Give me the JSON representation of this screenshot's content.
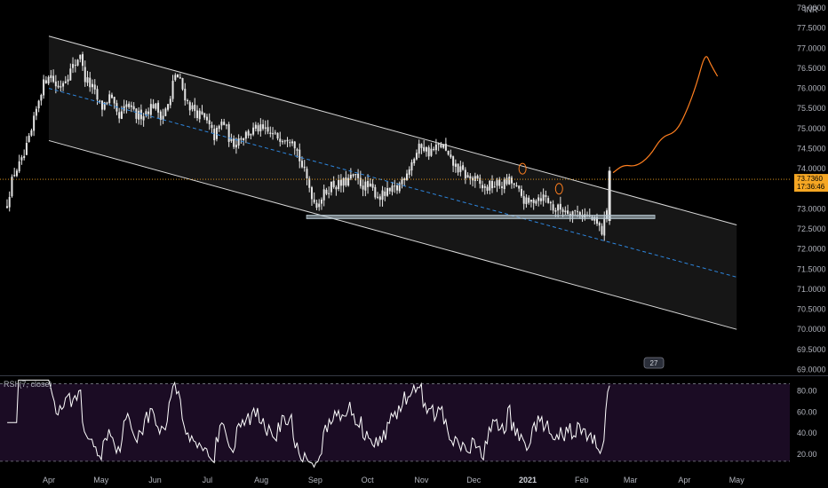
{
  "colors": {
    "background": "#000000",
    "candle": "#e6e6e6",
    "channel": "#d9d9d9",
    "channel_fill": "#1a1a1a",
    "midline": "#2e86de",
    "support": "#b9c9d3",
    "last_price": "#f5a623",
    "projection": "#ff7f1f",
    "rsi_line": "#ffffff",
    "rsi_fill": "#1b0c24"
  },
  "chart_data": [
    {
      "type": "candlestick",
      "currency": "INR",
      "ylim": [
        68.9,
        78.2
      ],
      "yticks": [
        "78.0000",
        "77.5000",
        "77.0000",
        "76.5000",
        "76.0000",
        "75.5000",
        "75.0000",
        "74.5000",
        "74.0000",
        "73.5000",
        "73.0000",
        "72.5000",
        "72.0000",
        "71.5000",
        "71.0000",
        "70.5000",
        "70.0000",
        "69.5000",
        "69.0000"
      ],
      "xticks": [
        {
          "label": "Apr",
          "day": 0
        },
        {
          "label": "May",
          "day": 30
        },
        {
          "label": "Jun",
          "day": 61
        },
        {
          "label": "Jul",
          "day": 91
        },
        {
          "label": "Aug",
          "day": 122
        },
        {
          "label": "Sep",
          "day": 153
        },
        {
          "label": "Oct",
          "day": 183
        },
        {
          "label": "Nov",
          "day": 214
        },
        {
          "label": "Dec",
          "day": 244
        },
        {
          "label": "2021",
          "day": 275,
          "bold": true
        },
        {
          "label": "Feb",
          "day": 306
        },
        {
          "label": "Mar",
          "day": 334
        },
        {
          "label": "Apr",
          "day": 365
        },
        {
          "label": "May",
          "day": 395
        }
      ],
      "last_price": 73.736,
      "last_price_label": "73.7360",
      "countdown_label": "17:36:46",
      "badge_label": "27",
      "close_path": [
        [
          -25,
          73.0
        ],
        [
          -20,
          73.9
        ],
        [
          -15,
          74.2
        ],
        [
          -10,
          74.9
        ],
        [
          -5,
          75.9
        ],
        [
          0,
          76.4
        ],
        [
          5,
          76.0
        ],
        [
          10,
          76.3
        ],
        [
          15,
          76.6
        ],
        [
          18,
          76.9
        ],
        [
          20,
          76.3
        ],
        [
          25,
          76.0
        ],
        [
          30,
          75.5
        ],
        [
          35,
          75.8
        ],
        [
          40,
          75.2
        ],
        [
          45,
          75.6
        ],
        [
          50,
          75.3
        ],
        [
          55,
          75.4
        ],
        [
          60,
          75.6
        ],
        [
          65,
          75.3
        ],
        [
          70,
          75.7
        ],
        [
          72,
          76.4
        ],
        [
          75,
          76.2
        ],
        [
          80,
          75.6
        ],
        [
          85,
          75.4
        ],
        [
          90,
          75.2
        ],
        [
          95,
          74.8
        ],
        [
          100,
          75.2
        ],
        [
          105,
          74.6
        ],
        [
          110,
          74.8
        ],
        [
          115,
          74.9
        ],
        [
          120,
          75.0
        ],
        [
          125,
          74.9
        ],
        [
          130,
          74.8
        ],
        [
          135,
          74.8
        ],
        [
          140,
          74.8
        ],
        [
          145,
          74.1
        ],
        [
          150,
          73.5
        ],
        [
          153,
          73.1
        ],
        [
          157,
          73.3
        ],
        [
          162,
          73.6
        ],
        [
          168,
          73.6
        ],
        [
          175,
          73.8
        ],
        [
          180,
          73.6
        ],
        [
          185,
          73.5
        ],
        [
          190,
          73.3
        ],
        [
          195,
          73.4
        ],
        [
          200,
          73.5
        ],
        [
          205,
          73.9
        ],
        [
          210,
          74.3
        ],
        [
          214,
          74.6
        ],
        [
          218,
          74.4
        ],
        [
          222,
          74.5
        ],
        [
          226,
          74.6
        ],
        [
          230,
          74.2
        ],
        [
          235,
          74.0
        ],
        [
          240,
          73.8
        ],
        [
          245,
          73.7
        ],
        [
          250,
          73.5
        ],
        [
          255,
          73.6
        ],
        [
          260,
          73.6
        ],
        [
          265,
          73.7
        ],
        [
          270,
          73.4
        ],
        [
          275,
          73.1
        ],
        [
          280,
          73.3
        ],
        [
          285,
          73.3
        ],
        [
          290,
          73.0
        ],
        [
          295,
          73.0
        ],
        [
          300,
          72.95
        ],
        [
          305,
          72.9
        ],
        [
          310,
          72.8
        ],
        [
          315,
          72.6
        ],
        [
          318,
          72.4
        ],
        [
          320,
          72.9
        ],
        [
          322,
          73.736
        ]
      ],
      "channel": {
        "upper": [
          [
            0,
            77.3
          ],
          [
            395,
            72.6
          ]
        ],
        "lower": [
          [
            0,
            74.7
          ],
          [
            395,
            70.0
          ]
        ],
        "mid": [
          [
            0,
            76.0
          ],
          [
            395,
            71.3
          ]
        ]
      },
      "support": {
        "y": 72.8,
        "from_day": 148,
        "to_day": 348
      },
      "projection": [
        [
          324,
          73.9
        ],
        [
          330,
          74.1
        ],
        [
          337,
          74.05
        ],
        [
          345,
          74.3
        ],
        [
          352,
          74.8
        ],
        [
          360,
          74.9
        ],
        [
          366,
          75.4
        ],
        [
          372,
          76.1
        ],
        [
          377,
          76.9
        ],
        [
          380,
          76.6
        ],
        [
          384,
          76.3
        ]
      ]
    },
    {
      "type": "line",
      "title": "RSI (7, close)",
      "ylim": [
        5,
        92
      ],
      "yticks": [
        "80.00",
        "60.00",
        "40.00",
        "20.00"
      ],
      "bands": [
        86.5,
        13.5
      ],
      "samples": 322
    }
  ]
}
